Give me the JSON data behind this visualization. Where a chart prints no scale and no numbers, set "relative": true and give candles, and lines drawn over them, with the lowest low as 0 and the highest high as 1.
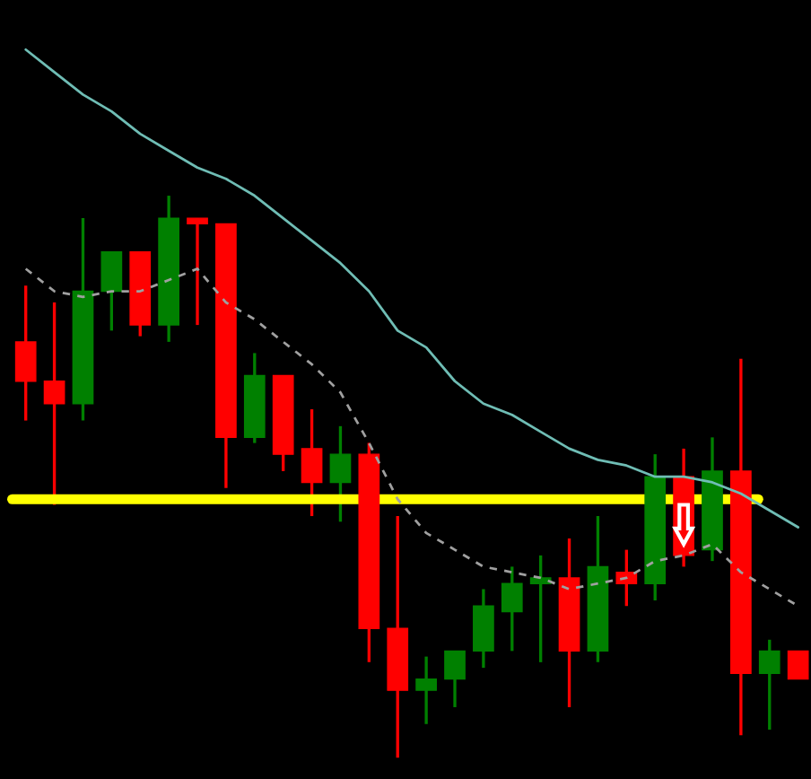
{
  "chart_data": {
    "type": "candlestick",
    "relative": true,
    "categories": [
      null,
      null,
      null,
      null,
      null,
      null,
      null,
      null,
      null,
      null,
      null,
      null,
      null,
      null,
      null,
      null,
      null,
      null,
      null,
      null,
      null,
      null,
      null,
      null,
      null,
      null,
      null,
      null
    ],
    "ohlc": [
      [
        0.74,
        0.84,
        0.6,
        0.67
      ],
      [
        0.67,
        0.81,
        0.45,
        0.63
      ],
      [
        0.63,
        0.96,
        0.6,
        0.83
      ],
      [
        0.83,
        0.9,
        0.76,
        0.9
      ],
      [
        0.9,
        0.9,
        0.75,
        0.77
      ],
      [
        0.77,
        1.0,
        0.74,
        0.96
      ],
      [
        0.96,
        0.96,
        0.77,
        0.95
      ],
      [
        0.95,
        0.95,
        0.48,
        0.57
      ],
      [
        0.57,
        0.72,
        0.56,
        0.68
      ],
      [
        0.68,
        0.68,
        0.51,
        0.54
      ],
      [
        0.55,
        0.62,
        0.43,
        0.49
      ],
      [
        0.49,
        0.59,
        0.42,
        0.54
      ],
      [
        0.54,
        0.56,
        0.17,
        0.23
      ],
      [
        0.23,
        0.43,
        0.0,
        0.12
      ],
      [
        0.12,
        0.18,
        0.06,
        0.14
      ],
      [
        0.14,
        0.19,
        0.09,
        0.19
      ],
      [
        0.19,
        0.3,
        0.16,
        0.27
      ],
      [
        0.26,
        0.34,
        0.19,
        0.31
      ],
      [
        0.31,
        0.36,
        0.17,
        0.32
      ],
      [
        0.32,
        0.39,
        0.09,
        0.19
      ],
      [
        0.19,
        0.43,
        0.17,
        0.34
      ],
      [
        0.33,
        0.37,
        0.27,
        0.31
      ],
      [
        0.31,
        0.54,
        0.28,
        0.5
      ],
      [
        0.5,
        0.55,
        0.34,
        0.36
      ],
      [
        0.37,
        0.57,
        0.35,
        0.51
      ],
      [
        0.51,
        0.71,
        0.04,
        0.15
      ],
      [
        0.15,
        0.21,
        0.05,
        0.19
      ],
      [
        0.19,
        0.19,
        0.14,
        0.14
      ]
    ],
    "colors": [
      "#ff0000",
      "#ff0000",
      "#008000",
      "#008000",
      "#ff0000",
      "#008000",
      "#ff0000",
      "#ff0000",
      "#008000",
      "#ff0000",
      "#ff0000",
      "#008000",
      "#ff0000",
      "#ff0000",
      "#008000",
      "#008000",
      "#008000",
      "#008000",
      "#008000",
      "#ff0000",
      "#008000",
      "#ff0000",
      "#008000",
      "#ff0000",
      "#008000",
      "#ff0000",
      "#008000",
      "#ff0000"
    ],
    "series": [
      {
        "type": "line",
        "color": "#6fbdb5",
        "line_style": "solid",
        "values": [
          1.26,
          1.22,
          1.18,
          1.15,
          1.11,
          1.08,
          1.05,
          1.03,
          1.0,
          0.96,
          0.92,
          0.88,
          0.83,
          0.76,
          0.73,
          0.67,
          0.63,
          0.61,
          0.58,
          0.55,
          0.53,
          0.52,
          0.5,
          0.5,
          0.49,
          0.47,
          0.44,
          0.41
        ]
      },
      {
        "type": "line",
        "color": "#a0a0a0",
        "line_style": "dashed",
        "values": [
          0.87,
          0.83,
          0.82,
          0.83,
          0.83,
          0.85,
          0.87,
          0.81,
          0.78,
          0.74,
          0.7,
          0.65,
          0.56,
          0.46,
          0.4,
          0.37,
          0.34,
          0.33,
          0.32,
          0.3,
          0.31,
          0.32,
          0.35,
          0.36,
          0.38,
          0.33,
          0.3,
          0.27
        ]
      }
    ],
    "ref_lines": [
      {
        "axis": "y",
        "value": 0.46,
        "color": "#ffff00",
        "line_style": "solid"
      }
    ],
    "grid": false,
    "legend": false
  }
}
